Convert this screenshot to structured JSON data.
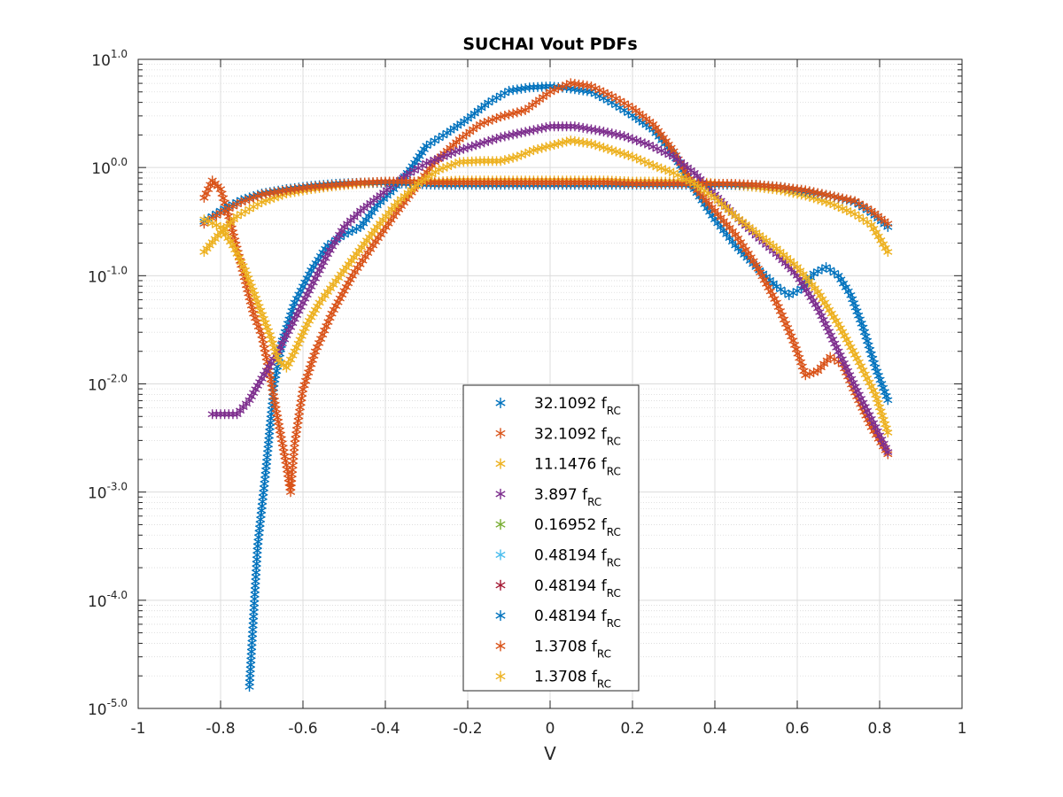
{
  "chart_data": {
    "type": "scatter",
    "title": "SUCHAI Vout PDFs",
    "xlabel": "V",
    "ylabel": "",
    "xlim": [
      -1,
      1
    ],
    "ylim_log10": [
      -5,
      1
    ],
    "yscale": "log",
    "grid": true,
    "minor_grid": true,
    "marker": "asterisk",
    "x_ticks": [
      "-1",
      "-0.8",
      "-0.6",
      "-0.4",
      "-0.2",
      "0",
      "0.2",
      "0.4",
      "0.6",
      "0.8",
      "1"
    ],
    "x_tick_values": [
      -1,
      -0.8,
      -0.6,
      -0.4,
      -0.2,
      0,
      0.2,
      0.4,
      0.6,
      0.8,
      1
    ],
    "y_tick_exponents": [
      "1.0",
      "0.0",
      "-1.0",
      "-2.0",
      "-3.0",
      "-4.0",
      "-5.0"
    ],
    "y_tick_values_log10": [
      1,
      0,
      -1,
      -2,
      -3,
      -4,
      -5
    ],
    "y_tick_base": "10",
    "legend_placement": "bottom-center",
    "legend_subscript": "RC",
    "series": [
      {
        "name": "32.1092 f",
        "color": "#0072BD",
        "points_log10": [
          [
            -0.73,
            -4.8
          ],
          [
            -0.71,
            -3.5
          ],
          [
            -0.69,
            -2.8
          ],
          [
            -0.67,
            -2.0
          ],
          [
            -0.65,
            -1.6
          ],
          [
            -0.62,
            -1.25
          ],
          [
            -0.58,
            -0.95
          ],
          [
            -0.54,
            -0.72
          ],
          [
            -0.5,
            -0.62
          ],
          [
            -0.46,
            -0.55
          ],
          [
            -0.42,
            -0.35
          ],
          [
            -0.38,
            -0.2
          ],
          [
            -0.34,
            -0.02
          ],
          [
            -0.3,
            0.2
          ],
          [
            -0.25,
            0.32
          ],
          [
            -0.2,
            0.45
          ],
          [
            -0.15,
            0.6
          ],
          [
            -0.1,
            0.71
          ],
          [
            -0.05,
            0.74
          ],
          [
            0,
            0.75
          ],
          [
            0.05,
            0.73
          ],
          [
            0.1,
            0.7
          ],
          [
            0.15,
            0.6
          ],
          [
            0.2,
            0.48
          ],
          [
            0.25,
            0.35
          ],
          [
            0.3,
            0.12
          ],
          [
            0.35,
            -0.2
          ],
          [
            0.4,
            -0.48
          ],
          [
            0.45,
            -0.72
          ],
          [
            0.5,
            -0.92
          ],
          [
            0.55,
            -1.1
          ],
          [
            0.58,
            -1.18
          ],
          [
            0.61,
            -1.12
          ],
          [
            0.64,
            -0.98
          ],
          [
            0.67,
            -0.92
          ],
          [
            0.7,
            -1.0
          ],
          [
            0.73,
            -1.18
          ],
          [
            0.76,
            -1.48
          ],
          [
            0.79,
            -1.85
          ],
          [
            0.82,
            -2.15
          ]
        ]
      },
      {
        "name": "32.1092 f",
        "color": "#D95319",
        "points_log10": [
          [
            -0.84,
            -0.28
          ],
          [
            -0.82,
            -0.12
          ],
          [
            -0.8,
            -0.2
          ],
          [
            -0.78,
            -0.45
          ],
          [
            -0.76,
            -0.75
          ],
          [
            -0.74,
            -1.05
          ],
          [
            -0.72,
            -1.35
          ],
          [
            -0.7,
            -1.55
          ],
          [
            -0.68,
            -1.92
          ],
          [
            -0.66,
            -2.35
          ],
          [
            -0.64,
            -2.75
          ],
          [
            -0.63,
            -3.0
          ],
          [
            -0.62,
            -2.55
          ],
          [
            -0.6,
            -2.05
          ],
          [
            -0.57,
            -1.7
          ],
          [
            -0.53,
            -1.35
          ],
          [
            -0.48,
            -1.0
          ],
          [
            -0.43,
            -0.72
          ],
          [
            -0.38,
            -0.45
          ],
          [
            -0.33,
            -0.2
          ],
          [
            -0.28,
            0.05
          ],
          [
            -0.22,
            0.26
          ],
          [
            -0.17,
            0.4
          ],
          [
            -0.12,
            0.47
          ],
          [
            -0.06,
            0.53
          ],
          [
            0,
            0.7
          ],
          [
            0.05,
            0.78
          ],
          [
            0.1,
            0.75
          ],
          [
            0.15,
            0.66
          ],
          [
            0.2,
            0.55
          ],
          [
            0.25,
            0.4
          ],
          [
            0.3,
            0.15
          ],
          [
            0.35,
            -0.18
          ],
          [
            0.4,
            -0.4
          ],
          [
            0.45,
            -0.62
          ],
          [
            0.5,
            -0.9
          ],
          [
            0.55,
            -1.25
          ],
          [
            0.59,
            -1.6
          ],
          [
            0.62,
            -1.92
          ],
          [
            0.65,
            -1.88
          ],
          [
            0.68,
            -1.75
          ],
          [
            0.71,
            -1.82
          ],
          [
            0.74,
            -2.08
          ],
          [
            0.78,
            -2.4
          ],
          [
            0.82,
            -2.65
          ]
        ]
      },
      {
        "name": "11.1476 f",
        "color": "#EDB120",
        "points_log10": [
          [
            -0.84,
            -0.78
          ],
          [
            -0.8,
            -0.6
          ],
          [
            -0.76,
            -0.45
          ],
          [
            -0.7,
            -0.32
          ],
          [
            -0.64,
            -0.24
          ],
          [
            -0.58,
            -0.2
          ],
          [
            -0.52,
            -0.17
          ],
          [
            -0.46,
            -0.15
          ],
          [
            -0.4,
            -0.14
          ],
          [
            -0.34,
            -0.13
          ],
          [
            -0.28,
            -0.13
          ],
          [
            -0.22,
            -0.12
          ],
          [
            -0.16,
            -0.12
          ],
          [
            -0.1,
            -0.12
          ],
          [
            -0.04,
            -0.12
          ],
          [
            0.02,
            -0.12
          ],
          [
            0.08,
            -0.12
          ],
          [
            0.14,
            -0.12
          ],
          [
            0.2,
            -0.13
          ],
          [
            0.26,
            -0.13
          ],
          [
            0.32,
            -0.13
          ],
          [
            0.38,
            -0.14
          ],
          [
            0.44,
            -0.16
          ],
          [
            0.5,
            -0.18
          ],
          [
            0.56,
            -0.21
          ],
          [
            0.62,
            -0.26
          ],
          [
            0.68,
            -0.33
          ],
          [
            0.74,
            -0.43
          ],
          [
            0.78,
            -0.53
          ],
          [
            0.82,
            -0.78
          ]
        ]
      },
      {
        "name": "3.897 f",
        "color": "#7E2F8E",
        "points_log10": [
          [
            -0.82,
            -2.28
          ],
          [
            -0.79,
            -2.28
          ],
          [
            -0.76,
            -2.28
          ],
          [
            -0.73,
            -2.15
          ],
          [
            -0.7,
            -1.95
          ],
          [
            -0.66,
            -1.7
          ],
          [
            -0.62,
            -1.4
          ],
          [
            -0.58,
            -1.1
          ],
          [
            -0.54,
            -0.8
          ],
          [
            -0.5,
            -0.55
          ],
          [
            -0.46,
            -0.4
          ],
          [
            -0.42,
            -0.28
          ],
          [
            -0.38,
            -0.16
          ],
          [
            -0.34,
            -0.05
          ],
          [
            -0.3,
            0.04
          ],
          [
            -0.26,
            0.1
          ],
          [
            -0.22,
            0.16
          ],
          [
            -0.17,
            0.22
          ],
          [
            -0.12,
            0.28
          ],
          [
            -0.06,
            0.33
          ],
          [
            0,
            0.38
          ],
          [
            0.06,
            0.38
          ],
          [
            0.12,
            0.34
          ],
          [
            0.18,
            0.29
          ],
          [
            0.24,
            0.21
          ],
          [
            0.3,
            0.1
          ],
          [
            0.35,
            -0.05
          ],
          [
            0.4,
            -0.25
          ],
          [
            0.45,
            -0.45
          ],
          [
            0.5,
            -0.63
          ],
          [
            0.55,
            -0.8
          ],
          [
            0.6,
            -1.0
          ],
          [
            0.65,
            -1.3
          ],
          [
            0.7,
            -1.7
          ],
          [
            0.75,
            -2.1
          ],
          [
            0.79,
            -2.4
          ],
          [
            0.82,
            -2.63
          ]
        ]
      },
      {
        "name": "0.16952 f",
        "color": "#77AC30",
        "points_log10": []
      },
      {
        "name": "0.48194 f",
        "color": "#4DBEEE",
        "points_log10": []
      },
      {
        "name": "0.48194 f",
        "color": "#A2142F",
        "points_log10": []
      },
      {
        "name": "0.48194 f",
        "color": "#0072BD",
        "points_log10": [
          [
            -0.84,
            -0.5
          ],
          [
            -0.8,
            -0.4
          ],
          [
            -0.75,
            -0.3
          ],
          [
            -0.7,
            -0.24
          ],
          [
            -0.64,
            -0.2
          ],
          [
            -0.58,
            -0.17
          ],
          [
            -0.52,
            -0.15
          ],
          [
            -0.46,
            -0.14
          ],
          [
            -0.4,
            -0.14
          ],
          [
            -0.34,
            -0.15
          ],
          [
            -0.28,
            -0.16
          ],
          [
            -0.22,
            -0.16
          ],
          [
            -0.16,
            -0.16
          ],
          [
            -0.1,
            -0.16
          ],
          [
            -0.04,
            -0.16
          ],
          [
            0.02,
            -0.16
          ],
          [
            0.08,
            -0.16
          ],
          [
            0.14,
            -0.16
          ],
          [
            0.2,
            -0.16
          ],
          [
            0.26,
            -0.16
          ],
          [
            0.32,
            -0.16
          ],
          [
            0.38,
            -0.16
          ],
          [
            0.44,
            -0.16
          ],
          [
            0.5,
            -0.16
          ],
          [
            0.56,
            -0.18
          ],
          [
            0.62,
            -0.22
          ],
          [
            0.68,
            -0.26
          ],
          [
            0.74,
            -0.32
          ],
          [
            0.78,
            -0.42
          ],
          [
            0.82,
            -0.55
          ]
        ]
      },
      {
        "name": "1.3708 f",
        "color": "#D95319",
        "points_log10": [
          [
            -0.84,
            -0.52
          ],
          [
            -0.8,
            -0.42
          ],
          [
            -0.75,
            -0.32
          ],
          [
            -0.7,
            -0.25
          ],
          [
            -0.64,
            -0.21
          ],
          [
            -0.58,
            -0.18
          ],
          [
            -0.52,
            -0.16
          ],
          [
            -0.46,
            -0.14
          ],
          [
            -0.4,
            -0.13
          ],
          [
            -0.34,
            -0.13
          ],
          [
            -0.28,
            -0.14
          ],
          [
            -0.22,
            -0.14
          ],
          [
            -0.16,
            -0.14
          ],
          [
            -0.1,
            -0.14
          ],
          [
            -0.04,
            -0.14
          ],
          [
            0.02,
            -0.14
          ],
          [
            0.08,
            -0.14
          ],
          [
            0.14,
            -0.14
          ],
          [
            0.2,
            -0.15
          ],
          [
            0.26,
            -0.15
          ],
          [
            0.32,
            -0.15
          ],
          [
            0.38,
            -0.15
          ],
          [
            0.44,
            -0.15
          ],
          [
            0.5,
            -0.16
          ],
          [
            0.56,
            -0.18
          ],
          [
            0.62,
            -0.21
          ],
          [
            0.68,
            -0.26
          ],
          [
            0.74,
            -0.31
          ],
          [
            0.78,
            -0.4
          ],
          [
            0.82,
            -0.52
          ]
        ]
      },
      {
        "name": "1.3708 f",
        "color": "#EDB120",
        "points_log10": [
          [
            -0.84,
            -0.48
          ],
          [
            -0.8,
            -0.55
          ],
          [
            -0.77,
            -0.72
          ],
          [
            -0.74,
            -0.95
          ],
          [
            -0.71,
            -1.25
          ],
          [
            -0.68,
            -1.55
          ],
          [
            -0.66,
            -1.78
          ],
          [
            -0.64,
            -1.85
          ],
          [
            -0.62,
            -1.7
          ],
          [
            -0.59,
            -1.45
          ],
          [
            -0.56,
            -1.25
          ],
          [
            -0.52,
            -1.05
          ],
          [
            -0.47,
            -0.8
          ],
          [
            -0.42,
            -0.55
          ],
          [
            -0.37,
            -0.32
          ],
          [
            -0.32,
            -0.15
          ],
          [
            -0.27,
            -0.02
          ],
          [
            -0.22,
            0.05
          ],
          [
            -0.17,
            0.06
          ],
          [
            -0.12,
            0.06
          ],
          [
            -0.08,
            0.1
          ],
          [
            -0.04,
            0.16
          ],
          [
            0,
            0.2
          ],
          [
            0.05,
            0.25
          ],
          [
            0.1,
            0.22
          ],
          [
            0.15,
            0.16
          ],
          [
            0.2,
            0.1
          ],
          [
            0.25,
            0.02
          ],
          [
            0.3,
            -0.05
          ],
          [
            0.35,
            -0.15
          ],
          [
            0.4,
            -0.28
          ],
          [
            0.45,
            -0.45
          ],
          [
            0.5,
            -0.6
          ],
          [
            0.55,
            -0.75
          ],
          [
            0.6,
            -0.92
          ],
          [
            0.65,
            -1.15
          ],
          [
            0.7,
            -1.45
          ],
          [
            0.75,
            -1.8
          ],
          [
            0.79,
            -2.1
          ],
          [
            0.82,
            -2.45
          ]
        ]
      }
    ]
  }
}
